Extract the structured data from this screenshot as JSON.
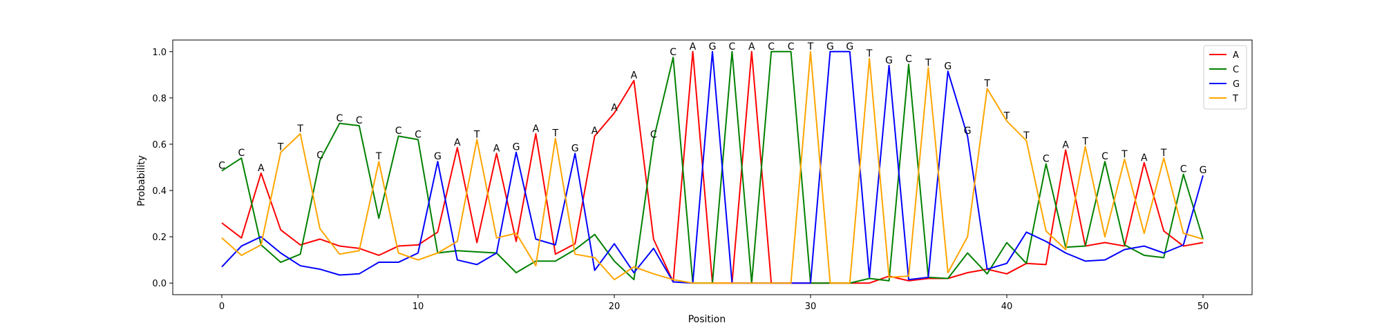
{
  "chart_data": {
    "type": "line",
    "title": "",
    "xlabel": "Position",
    "ylabel": "Probability",
    "xlim": [
      -2.5,
      52.5
    ],
    "ylim": [
      -0.05,
      1.05
    ],
    "x_ticks": [
      0,
      10,
      20,
      30,
      40,
      50
    ],
    "x_tick_labels": [
      "0",
      "10",
      "20",
      "30",
      "40",
      "50"
    ],
    "y_ticks": [
      0.0,
      0.2,
      0.4,
      0.6,
      0.8,
      1.0
    ],
    "y_tick_labels": [
      "0.0",
      "0.2",
      "0.4",
      "0.6",
      "0.8",
      "1.0"
    ],
    "grid": false,
    "legend_position": "top-right",
    "x": [
      0,
      1,
      2,
      3,
      4,
      5,
      6,
      7,
      8,
      9,
      10,
      11,
      12,
      13,
      14,
      15,
      16,
      17,
      18,
      19,
      20,
      21,
      22,
      23,
      24,
      25,
      26,
      27,
      28,
      29,
      30,
      31,
      32,
      33,
      34,
      35,
      36,
      37,
      38,
      39,
      40,
      41,
      42,
      43,
      44,
      45,
      46,
      47,
      48,
      49,
      50
    ],
    "series": [
      {
        "name": "A",
        "color": "#ff0000",
        "values": [
          0.26,
          0.195,
          0.475,
          0.23,
          0.165,
          0.19,
          0.16,
          0.15,
          0.12,
          0.16,
          0.165,
          0.22,
          0.585,
          0.175,
          0.56,
          0.18,
          0.645,
          0.125,
          0.17,
          0.635,
          0.735,
          0.875,
          0.19,
          0.005,
          1.0,
          0.0,
          0.0,
          1.0,
          0.0,
          0.0,
          0.0,
          0.0,
          0.0,
          0.0,
          0.03,
          0.01,
          0.02,
          0.02,
          0.045,
          0.06,
          0.04,
          0.085,
          0.08,
          0.575,
          0.16,
          0.175,
          0.16,
          0.52,
          0.225,
          0.16,
          0.175
        ]
      },
      {
        "name": "C",
        "color": "#008000",
        "values": [
          0.485,
          0.54,
          0.165,
          0.09,
          0.125,
          0.53,
          0.69,
          0.68,
          0.28,
          0.635,
          0.62,
          0.13,
          0.14,
          0.135,
          0.13,
          0.045,
          0.095,
          0.095,
          0.145,
          0.21,
          0.095,
          0.015,
          0.62,
          0.975,
          0.0,
          0.0,
          1.0,
          0.0,
          1.0,
          1.0,
          0.0,
          0.0,
          0.0,
          0.02,
          0.01,
          0.945,
          0.025,
          0.02,
          0.13,
          0.04,
          0.175,
          0.085,
          0.515,
          0.155,
          0.16,
          0.525,
          0.165,
          0.12,
          0.11,
          0.47,
          0.19
        ]
      },
      {
        "name": "G",
        "color": "#0000ff",
        "values": [
          0.07,
          0.16,
          0.2,
          0.13,
          0.075,
          0.06,
          0.035,
          0.04,
          0.09,
          0.09,
          0.13,
          0.525,
          0.1,
          0.08,
          0.13,
          0.565,
          0.19,
          0.165,
          0.56,
          0.055,
          0.17,
          0.045,
          0.15,
          0.005,
          0.0,
          1.0,
          0.0,
          0.0,
          0.0,
          0.0,
          0.0,
          1.0,
          1.0,
          0.025,
          0.94,
          0.015,
          0.025,
          0.915,
          0.635,
          0.06,
          0.085,
          0.22,
          0.18,
          0.13,
          0.095,
          0.1,
          0.145,
          0.16,
          0.13,
          0.165,
          0.465
        ]
      },
      {
        "name": "T",
        "color": "#ffa500",
        "values": [
          0.195,
          0.12,
          0.165,
          0.565,
          0.645,
          0.235,
          0.125,
          0.14,
          0.525,
          0.13,
          0.1,
          0.13,
          0.18,
          0.62,
          0.195,
          0.215,
          0.075,
          0.625,
          0.125,
          0.11,
          0.015,
          0.07,
          0.04,
          0.015,
          0.0,
          0.0,
          0.0,
          0.0,
          0.0,
          0.0,
          1.0,
          0.0,
          0.0,
          0.97,
          0.025,
          0.03,
          0.93,
          0.045,
          0.2,
          0.84,
          0.7,
          0.615,
          0.225,
          0.145,
          0.59,
          0.2,
          0.535,
          0.215,
          0.54,
          0.215,
          0.19
        ]
      }
    ],
    "annotations": {
      "letters": [
        "C",
        "C",
        "A",
        "T",
        "T",
        "C",
        "C",
        "C",
        "T",
        "C",
        "C",
        "G",
        "A",
        "T",
        "A",
        "G",
        "A",
        "T",
        "G",
        "A",
        "A",
        "A",
        "C",
        "C",
        "A",
        "G",
        "C",
        "A",
        "C",
        "C",
        "T",
        "G",
        "G",
        "T",
        "G",
        "C",
        "T",
        "G",
        "G",
        "T",
        "T",
        "T",
        "C",
        "A",
        "T",
        "C",
        "T",
        "A",
        "T",
        "C",
        "G"
      ],
      "values": [
        0.485,
        0.54,
        0.475,
        0.565,
        0.645,
        0.53,
        0.69,
        0.68,
        0.525,
        0.635,
        0.62,
        0.525,
        0.585,
        0.62,
        0.56,
        0.565,
        0.645,
        0.625,
        0.56,
        0.635,
        0.735,
        0.875,
        0.62,
        0.975,
        1.0,
        1.0,
        1.0,
        1.0,
        1.0,
        1.0,
        1.0,
        1.0,
        1.0,
        0.97,
        0.94,
        0.945,
        0.93,
        0.915,
        0.635,
        0.84,
        0.7,
        0.615,
        0.515,
        0.575,
        0.59,
        0.525,
        0.535,
        0.52,
        0.54,
        0.47,
        0.465
      ]
    }
  }
}
